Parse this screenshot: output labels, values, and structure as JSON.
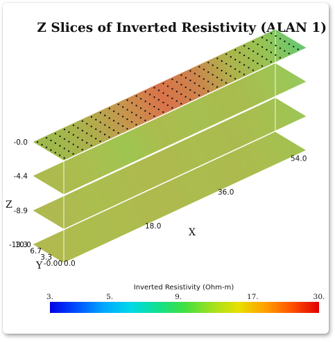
{
  "chart_data": {
    "type": "3d-slices",
    "title": "Z Slices of Inverted Resistivity (ALAN 1)",
    "axes": {
      "x": {
        "label": "X",
        "ticks": [
          "0.0",
          "18.0",
          "36.0",
          "54.0"
        ],
        "range": [
          0,
          60
        ]
      },
      "y": {
        "label": "Y",
        "ticks": [
          "-0.00",
          "3.3",
          "6.7",
          "10.0"
        ],
        "range": [
          0,
          10
        ]
      },
      "z": {
        "label": "Z",
        "ticks": [
          "-0.0",
          "-4.4",
          "-8.9",
          "-13.3"
        ],
        "range": [
          -13.3,
          0
        ]
      }
    },
    "slices_z": [
      0,
      -4.4,
      -8.9,
      -13.3
    ],
    "colorbar": {
      "title": "Inverted Resistivity (Ohm-m)",
      "ticks": [
        "3.",
        "5.",
        "9.",
        "17.",
        "30."
      ],
      "range": [
        3,
        30
      ],
      "scale": "log"
    },
    "slice_colors": {
      "top": [
        "#98b33e",
        "#aaa83f",
        "#c48c40",
        "#d6693c",
        "#c97a3e",
        "#a8ae3e",
        "#8ebf45",
        "#55c46a"
      ],
      "mid1": [
        "#a7b540",
        "#a3ba42",
        "#97c143",
        "#a5b740",
        "#9fbb43",
        "#a3b640",
        "#9cbd44",
        "#8dc650"
      ],
      "mid2": [
        "#a9b442",
        "#a4b941",
        "#a7b640",
        "#a9b441",
        "#a3b840",
        "#a5b541",
        "#9fbb42",
        "#94c248"
      ],
      "bottom": [
        "#aab541",
        "#a6b841",
        "#a8b641",
        "#a9b441",
        "#a5b741",
        "#a7b541",
        "#a2b941",
        "#9bbe44"
      ]
    }
  }
}
